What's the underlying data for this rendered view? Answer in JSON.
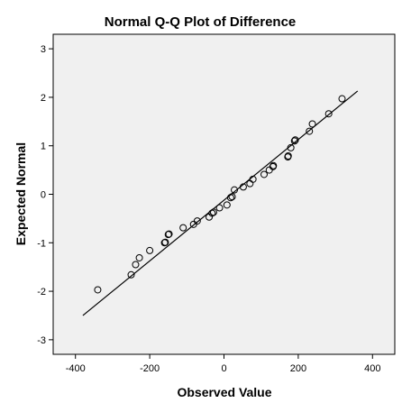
{
  "chart_data": {
    "type": "scatter",
    "title": "Normal Q-Q Plot of Difference",
    "xlabel": "Observed Value",
    "ylabel": "Expected Normal",
    "xlim": [
      -460,
      460
    ],
    "ylim": [
      -3.3,
      3.3
    ],
    "xticks": [
      -400,
      -200,
      0,
      200,
      400
    ],
    "yticks": [
      -3,
      -2,
      -1,
      0,
      1,
      2,
      3
    ],
    "grid": false,
    "plot_background": "#f0f0f0",
    "marker_color": "#000000",
    "points": [
      {
        "x": -340,
        "y": -1.97
      },
      {
        "x": -250,
        "y": -1.66
      },
      {
        "x": -238,
        "y": -1.45
      },
      {
        "x": -228,
        "y": -1.31
      },
      {
        "x": -200,
        "y": -1.16
      },
      {
        "x": -160,
        "y": -1.0
      },
      {
        "x": -158,
        "y": -0.99
      },
      {
        "x": -150,
        "y": -0.83
      },
      {
        "x": -148,
        "y": -0.82
      },
      {
        "x": -110,
        "y": -0.69
      },
      {
        "x": -82,
        "y": -0.62
      },
      {
        "x": -72,
        "y": -0.55
      },
      {
        "x": -40,
        "y": -0.47
      },
      {
        "x": -32,
        "y": -0.39
      },
      {
        "x": -28,
        "y": -0.37
      },
      {
        "x": -12,
        "y": -0.28
      },
      {
        "x": 8,
        "y": -0.22
      },
      {
        "x": 18,
        "y": -0.07
      },
      {
        "x": 22,
        "y": -0.05
      },
      {
        "x": 28,
        "y": 0.09
      },
      {
        "x": 52,
        "y": 0.15
      },
      {
        "x": 70,
        "y": 0.22
      },
      {
        "x": 78,
        "y": 0.31
      },
      {
        "x": 108,
        "y": 0.41
      },
      {
        "x": 122,
        "y": 0.5
      },
      {
        "x": 132,
        "y": 0.57
      },
      {
        "x": 133,
        "y": 0.59
      },
      {
        "x": 172,
        "y": 0.77
      },
      {
        "x": 173,
        "y": 0.79
      },
      {
        "x": 180,
        "y": 0.96
      },
      {
        "x": 190,
        "y": 1.1
      },
      {
        "x": 192,
        "y": 1.12
      },
      {
        "x": 230,
        "y": 1.3
      },
      {
        "x": 238,
        "y": 1.45
      },
      {
        "x": 282,
        "y": 1.66
      },
      {
        "x": 318,
        "y": 1.97
      }
    ],
    "reference_line": {
      "x": [
        -380,
        360
      ],
      "y": [
        -2.5,
        2.13
      ]
    }
  }
}
